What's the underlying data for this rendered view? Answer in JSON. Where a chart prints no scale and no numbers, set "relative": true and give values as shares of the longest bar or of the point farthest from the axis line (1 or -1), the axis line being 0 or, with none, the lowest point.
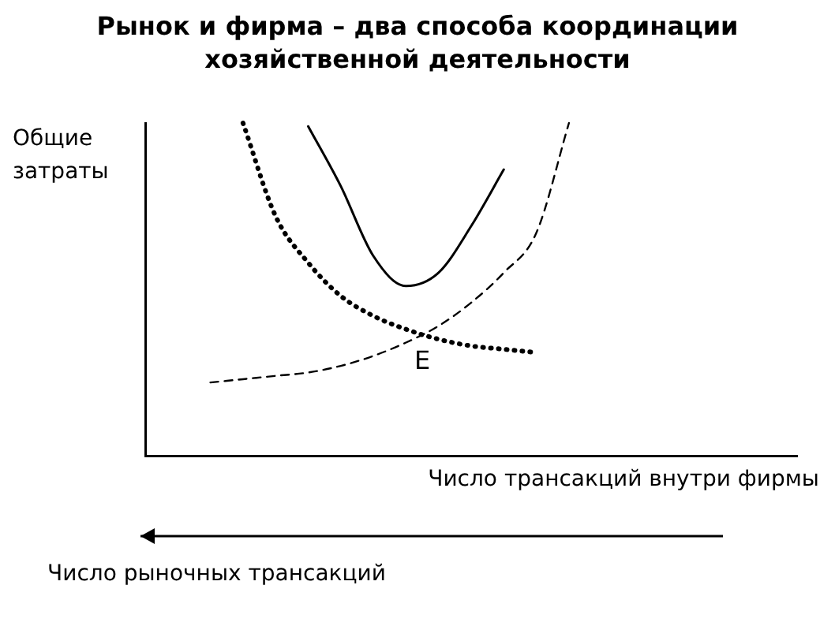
{
  "chart_data": {
    "type": "line",
    "relative": true,
    "title": "Рынок и фирма – два способа координации хозяйственной деятельности",
    "xlabel": "Число трансакций внутри фирмы",
    "ylabel": "Общие затраты",
    "annotations": [
      "E",
      "Число рыночных трансакций"
    ],
    "categories": [
      null,
      null,
      null,
      null,
      null,
      null,
      null,
      null,
      null,
      null,
      null,
      null,
      null,
      null,
      null,
      null,
      null,
      null,
      null,
      null,
      null
    ],
    "series": [
      {
        "color": "#000000",
        "line_style": "solid",
        "values": [
          null,
          null,
          null,
          null,
          null,
          0.99,
          0.81,
          0.6,
          0.51,
          0.55,
          0.69,
          0.86,
          null,
          null,
          null,
          null,
          null,
          null,
          null,
          null,
          null
        ]
      },
      {
        "color": "#000000",
        "line_style": "dotted",
        "values": [
          null,
          null,
          null,
          1,
          0.72,
          0.58,
          0.48,
          0.42,
          0.38,
          0.35,
          0.33,
          0.32,
          0.31,
          null,
          null,
          null,
          null,
          null,
          null,
          null,
          null
        ]
      },
      {
        "color": "#000000",
        "line_style": "dashed",
        "values": [
          null,
          null,
          0.22,
          0.23,
          0.24,
          0.25,
          0.27,
          0.3,
          0.34,
          0.39,
          0.46,
          0.55,
          0.67,
          1,
          null,
          null,
          null,
          null,
          null,
          null,
          null
        ]
      }
    ],
    "marker": "none",
    "grid": false,
    "legend": false,
    "tick_labels": false
  }
}
